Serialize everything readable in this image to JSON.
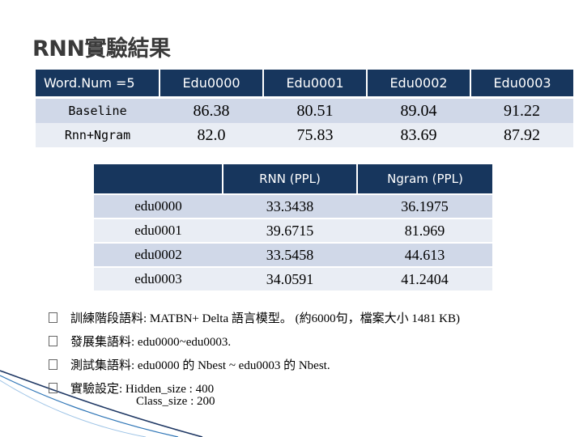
{
  "title": "RNN實驗結果",
  "table1": {
    "headers": [
      "Word.Num =5",
      "Edu0000",
      "Edu0001",
      "Edu0002",
      "Edu0003"
    ],
    "rows": [
      {
        "label": "Baseline",
        "values": [
          "86.38",
          "80.51",
          "89.04",
          "91.22"
        ]
      },
      {
        "label": "Rnn+Ngram",
        "values": [
          "82.0",
          "75.83",
          "83.69",
          "87.92"
        ]
      }
    ]
  },
  "table2": {
    "headers": [
      "",
      "RNN (PPL)",
      "Ngram (PPL)"
    ],
    "rows": [
      {
        "label": "edu0000",
        "values": [
          "33.3438",
          "36.1975"
        ]
      },
      {
        "label": "edu0001",
        "values": [
          "39.6715",
          "81.969"
        ]
      },
      {
        "label": "edu0002",
        "values": [
          "33.5458",
          "44.613"
        ]
      },
      {
        "label": "edu0003",
        "values": [
          "34.0591",
          "41.2404"
        ]
      }
    ]
  },
  "bullets": [
    "訓練階段語料: MATBN+ Delta 語言模型。 (約6000句，檔案大小 1481 KB)",
    "發展集語料:  edu0000~edu0003.",
    "測試集語料: edu0000 的 Nbest ~ edu0003 的 Nbest.",
    "實驗設定: Hidden_size : 400"
  ],
  "continuation": "Class_size : 200",
  "colors": {
    "header_bg": "#17365d",
    "row_dark": "#d0d8e8",
    "row_light": "#e9edf4"
  }
}
